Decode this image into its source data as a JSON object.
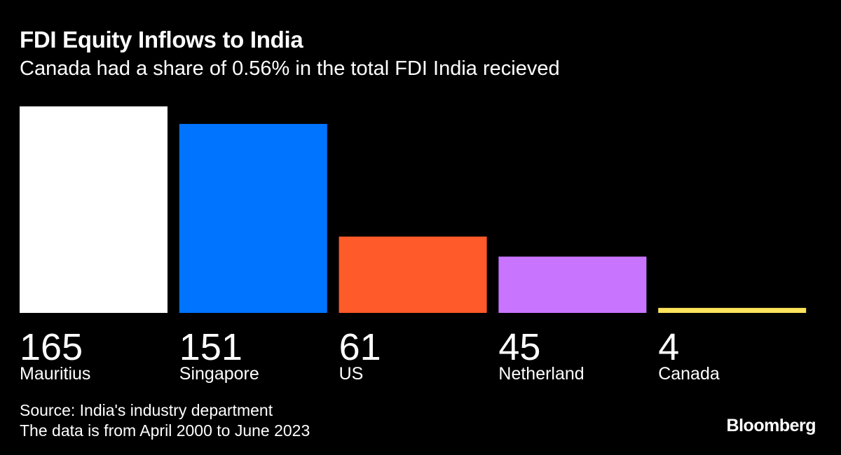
{
  "chart_data": {
    "type": "bar",
    "title": "FDI Equity Inflows to India",
    "subtitle": "Canada had a share of 0.56% in the total FDI India recieved",
    "categories": [
      "Mauritius",
      "Singapore",
      "US",
      "Netherland",
      "Canada"
    ],
    "values": [
      165,
      151,
      61,
      45,
      4
    ],
    "colors": [
      "#ffffff",
      "#0073ff",
      "#ff5a29",
      "#c974ff",
      "#ffe45c"
    ],
    "ylim": [
      0,
      165
    ],
    "grid": false,
    "xlabel": "",
    "ylabel": ""
  },
  "footer": {
    "source": "Source: India's industry department",
    "note": "The data is from April 2000 to June 2023",
    "logo": "Bloomberg"
  }
}
